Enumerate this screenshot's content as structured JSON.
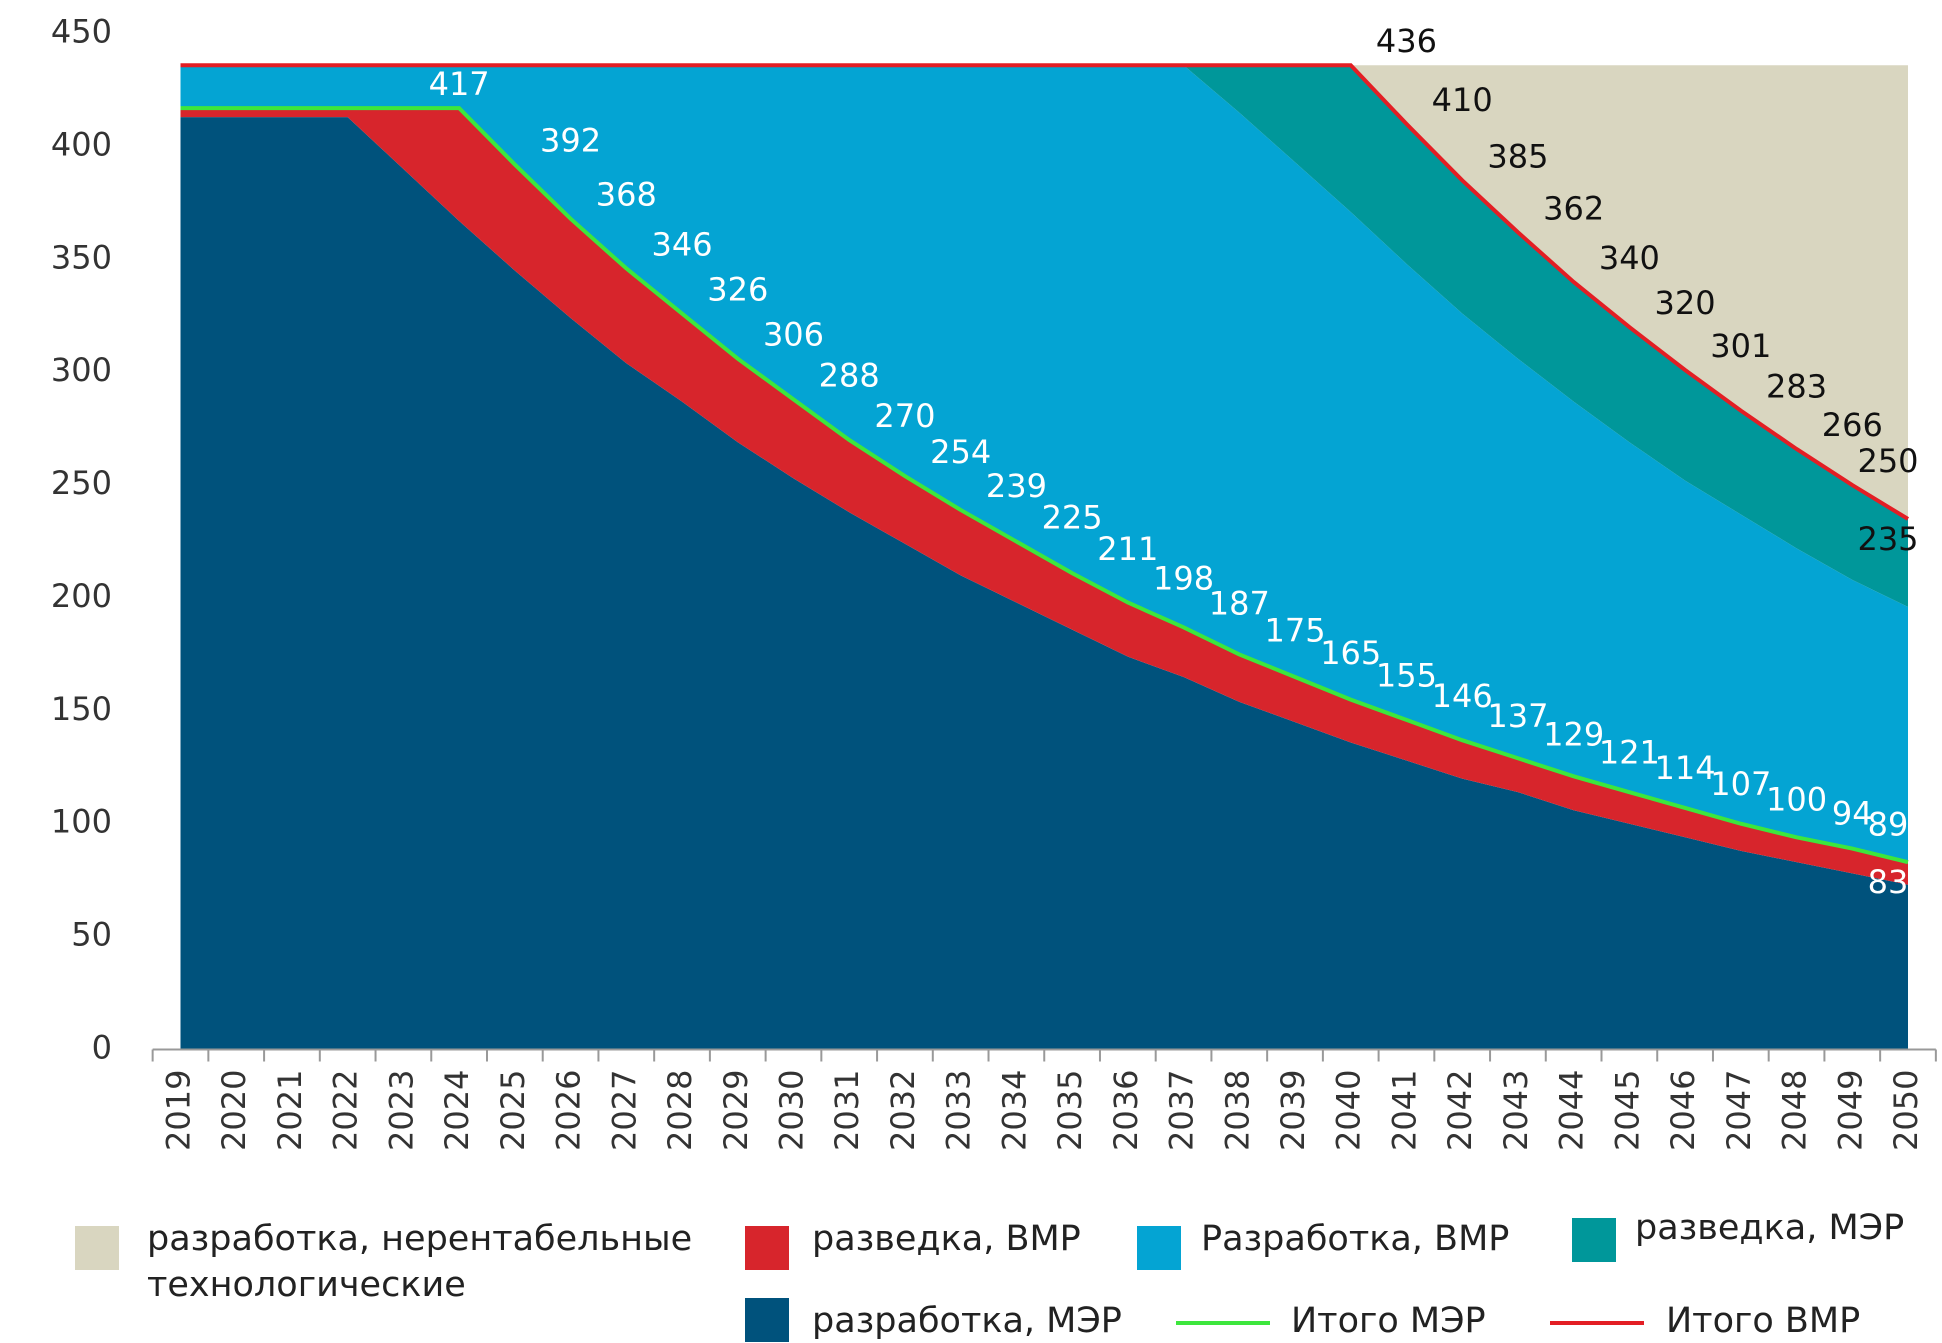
{
  "chart_data": {
    "type": "area",
    "categories": [
      "2019",
      "2020",
      "2021",
      "2022",
      "2023",
      "2024",
      "2025",
      "2026",
      "2027",
      "2028",
      "2029",
      "2030",
      "2031",
      "2032",
      "2033",
      "2034",
      "2035",
      "2036",
      "2037",
      "2038",
      "2039",
      "2040",
      "2041",
      "2042",
      "2043",
      "2044",
      "2045",
      "2046",
      "2047",
      "2048",
      "2049",
      "2050"
    ],
    "ylim": [
      0,
      450
    ],
    "yticks": [
      0,
      50,
      100,
      150,
      200,
      250,
      300,
      350,
      400,
      450
    ],
    "series": [
      {
        "name": "разработка, МЭР",
        "color": "#00527c",
        "values": [
          413,
          413,
          413,
          413,
          390,
          367,
          345,
          324,
          304,
          287,
          269,
          253,
          238,
          224,
          210,
          198,
          186,
          174,
          165,
          154,
          145,
          136,
          128,
          120,
          114,
          106,
          100,
          94,
          88,
          83,
          78,
          73
        ]
      },
      {
        "name": "разведка, ВМР",
        "color": "#d7252c",
        "values": [
          4,
          4,
          4,
          4,
          27,
          50,
          47,
          44,
          42,
          39,
          37,
          35,
          32,
          30,
          29,
          27,
          25,
          24,
          22,
          21,
          20,
          19,
          18,
          17,
          15,
          15,
          14,
          13,
          12,
          11,
          11,
          10
        ]
      },
      {
        "name": "Разработка, ВМР",
        "color": "#04a4d3",
        "values": [
          19,
          19,
          19,
          19,
          19,
          19,
          44,
          68,
          90,
          110,
          130,
          148,
          166,
          182,
          197,
          211,
          225,
          238,
          249,
          240,
          228,
          216,
          202,
          189,
          177,
          166,
          155,
          145,
          137,
          128,
          119,
          113
        ]
      },
      {
        "name": "разведка, МЭР",
        "color": "#00979a",
        "values": [
          0,
          0,
          0,
          0,
          0,
          0,
          0,
          0,
          0,
          0,
          0,
          0,
          0,
          0,
          0,
          0,
          0,
          0,
          0,
          21,
          43,
          65,
          62,
          59,
          56,
          53,
          51,
          49,
          46,
          44,
          42,
          39
        ]
      },
      {
        "name": "разработка, нерентабельные технологические",
        "color": "#d9d6c0",
        "values": [
          0,
          0,
          0,
          0,
          0,
          0,
          0,
          0,
          0,
          0,
          0,
          0,
          0,
          0,
          0,
          0,
          0,
          0,
          0,
          0,
          0,
          0,
          26,
          51,
          74,
          96,
          116,
          135,
          153,
          170,
          186,
          201
        ]
      },
      {
        "name": "Итого МЭР",
        "type": "line",
        "color": "#3de63d",
        "label_color": "#ffffff",
        "values": [
          417,
          417,
          417,
          417,
          417,
          417,
          392,
          368,
          346,
          326,
          306,
          288,
          270,
          254,
          239,
          225,
          211,
          198,
          187,
          175,
          165,
          155,
          146,
          137,
          129,
          121,
          114,
          107,
          100,
          94,
          89,
          83
        ],
        "value_labels": [
          null,
          null,
          null,
          null,
          "417",
          null,
          "392",
          "368",
          "346",
          "326",
          "306",
          "288",
          "270",
          "254",
          "239",
          "225",
          "211",
          "198",
          "187",
          "175",
          "165",
          "155",
          "146",
          "137",
          "129",
          "121",
          "114",
          "107",
          "100",
          "94",
          "89",
          "83"
        ]
      },
      {
        "name": "Итого ВМР",
        "type": "line",
        "color": "#e31e24",
        "label_color": "#111111",
        "values": [
          436,
          436,
          436,
          436,
          436,
          436,
          436,
          436,
          436,
          436,
          436,
          436,
          436,
          436,
          436,
          436,
          436,
          436,
          436,
          436,
          436,
          436,
          410,
          385,
          362,
          340,
          320,
          301,
          283,
          266,
          250,
          235
        ],
        "value_labels": [
          null,
          null,
          null,
          null,
          null,
          null,
          null,
          null,
          null,
          null,
          null,
          null,
          null,
          null,
          null,
          null,
          null,
          null,
          null,
          null,
          null,
          "436",
          "410",
          "385",
          "362",
          "340",
          "320",
          "301",
          "283",
          "266",
          "250",
          "235"
        ]
      }
    ]
  }
}
